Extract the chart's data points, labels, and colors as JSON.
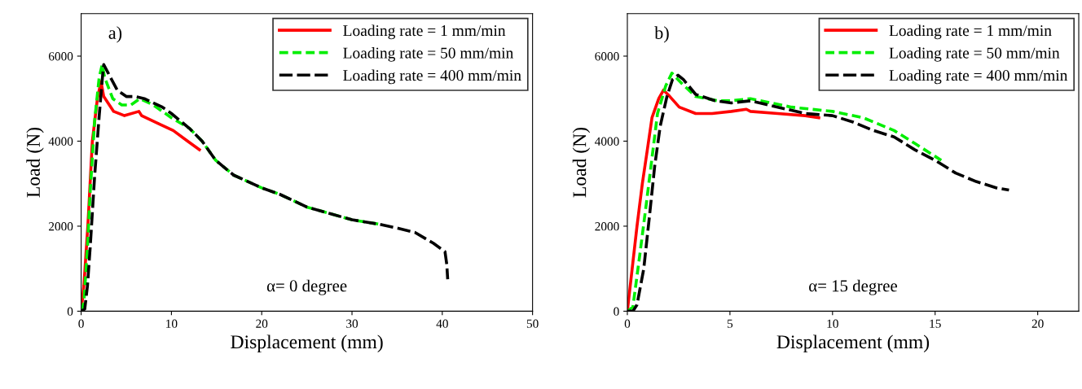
{
  "chart_data": [
    {
      "type": "line",
      "title": "a)",
      "xlabel": "Displacement (mm)",
      "ylabel": "Load (N)",
      "annotations": [
        "α= 0 degree"
      ],
      "xlim": [
        0,
        50
      ],
      "ylim": [
        0,
        7000
      ],
      "xticks": [
        0,
        10,
        20,
        30,
        40,
        50
      ],
      "yticks": [
        0,
        2000,
        4000,
        6000
      ],
      "legend": "top right",
      "grid": false,
      "marker": "none",
      "series": [
        {
          "name": "Loading rate = 1 mm/min",
          "color": "#ff0000",
          "line_style": "solid",
          "x": [
            0,
            0.3,
            0.74,
            1.24,
            1.8,
            2.2,
            2.5,
            3.6,
            4.8,
            6.4,
            6.7,
            8.7,
            10.2,
            11.8,
            13.1
          ],
          "values": [
            0,
            600,
            2000,
            4000,
            5000,
            5400,
            5050,
            4700,
            4600,
            4700,
            4600,
            4400,
            4250,
            4000,
            3800
          ]
        },
        {
          "name": "Loading rate = 50 mm/min",
          "color": "#00ee00",
          "line_style": "dashed",
          "x": [
            0,
            0.3,
            0.7,
            1.0,
            1.5,
            2.0,
            2.33,
            2.6,
            3.5,
            4.5,
            5.5,
            6.5,
            8,
            10,
            12,
            13.4,
            14.9,
            16.9,
            20,
            22,
            25,
            27.5,
            30,
            32.9
          ],
          "values": [
            0,
            200,
            1500,
            2800,
            4500,
            5500,
            5800,
            5500,
            5000,
            4850,
            4850,
            5000,
            4850,
            4550,
            4300,
            4000,
            3550,
            3200,
            2900,
            2750,
            2450,
            2300,
            2150,
            2050
          ]
        },
        {
          "name": "Loading rate = 400 mm/min",
          "color": "#000000",
          "line_style": "dashed",
          "x": [
            0,
            0.4,
            0.7,
            1.0,
            1.5,
            2.0,
            2.4,
            2.5,
            3.0,
            4.0,
            5.0,
            6.0,
            7.0,
            9.0,
            10,
            12,
            13.4,
            14.9,
            16.9,
            20,
            22,
            25,
            27.5,
            30,
            32.9,
            35.1,
            37,
            39,
            40.3,
            40.5,
            40.6
          ],
          "values": [
            0,
            50,
            600,
            1500,
            3200,
            4600,
            5600,
            5800,
            5600,
            5200,
            5050,
            5050,
            5000,
            4800,
            4650,
            4300,
            4000,
            3550,
            3200,
            2900,
            2750,
            2450,
            2300,
            2150,
            2050,
            1950,
            1850,
            1600,
            1400,
            1100,
            750
          ]
        }
      ]
    },
    {
      "type": "line",
      "title": "b)",
      "xlabel": "Displacement (mm)",
      "ylabel": "Load (N)",
      "annotations": [
        "α= 15 degree"
      ],
      "xlim": [
        0,
        22
      ],
      "ylim": [
        0,
        7000
      ],
      "xticks": [
        0,
        5,
        10,
        15,
        20
      ],
      "yticks": [
        0,
        2000,
        4000,
        6000
      ],
      "legend": "top right",
      "grid": false,
      "marker": "none",
      "series": [
        {
          "name": "Loading rate = 1 mm/min",
          "color": "#ff0000",
          "line_style": "solid",
          "x": [
            0,
            0.47,
            0.73,
            0.96,
            1.2,
            1.53,
            1.76,
            2.07,
            2.53,
            3.33,
            4.13,
            5.07,
            5.8,
            6.0,
            7.33,
            8.67,
            9.33
          ],
          "values": [
            0,
            2000,
            3000,
            3750,
            4550,
            5000,
            5200,
            5050,
            4800,
            4650,
            4650,
            4700,
            4750,
            4700,
            4650,
            4600,
            4550
          ]
        },
        {
          "name": "Loading rate = 50 mm/min",
          "color": "#00ee00",
          "line_style": "dashed",
          "x": [
            0,
            0.27,
            0.6,
            0.93,
            1.2,
            1.47,
            1.87,
            2.17,
            2.67,
            3.33,
            4.4,
            5.07,
            6.0,
            8,
            10,
            11.5,
            13,
            14,
            15.3
          ],
          "values": [
            0,
            100,
            1300,
            2550,
            3600,
            4650,
            5300,
            5600,
            5350,
            5050,
            4950,
            4950,
            5000,
            4800,
            4700,
            4550,
            4250,
            3950,
            3550
          ]
        },
        {
          "name": "Loading rate = 400 mm/min",
          "color": "#000000",
          "line_style": "dashed",
          "x": [
            0,
            0.27,
            0.47,
            0.8,
            1.07,
            1.33,
            1.6,
            1.93,
            2.2,
            2.47,
            2.73,
            3.33,
            4.27,
            5.07,
            6.0,
            7.33,
            8.67,
            10,
            11,
            12,
            13,
            14,
            15,
            16,
            17,
            18,
            18.6
          ],
          "values": [
            0,
            0,
            150,
            1000,
            2200,
            3400,
            4350,
            5050,
            5450,
            5550,
            5450,
            5100,
            4950,
            4900,
            4950,
            4800,
            4650,
            4600,
            4450,
            4250,
            4100,
            3800,
            3550,
            3250,
            3050,
            2900,
            2850
          ]
        }
      ]
    }
  ]
}
